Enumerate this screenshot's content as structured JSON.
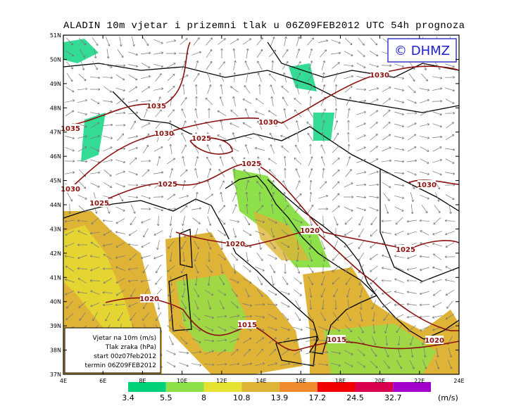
{
  "title": "ALADIN 10m vjetar i prizemni tlak u 06Z09FEB2012 UTC 54h prognoza",
  "logo": "© DHMZ",
  "lat_labels": [
    "51N",
    "50N",
    "49N",
    "48N",
    "47N",
    "46N",
    "45N",
    "44N",
    "43N",
    "42N",
    "41N",
    "40N",
    "39N",
    "38N",
    "37N"
  ],
  "lon_labels": [
    "4E",
    "6E",
    "8E",
    "10E",
    "12E",
    "14E",
    "16E",
    "18E",
    "20E",
    "22E",
    "24E"
  ],
  "isobar_labels": [
    1035,
    1035,
    1030,
    1025,
    1025,
    1025,
    1030,
    1025,
    1030,
    1030,
    1030,
    1020,
    1025,
    1020,
    1020,
    1015,
    1015,
    1020
  ],
  "info_box": [
    "Vjetar na 10m (m/s)",
    "Tlak zraka (hPa)",
    "start 00z07feb2012",
    "termin 06Z09FEB2012"
  ],
  "colorbar": {
    "labels": [
      3.4,
      5.5,
      8,
      10.8,
      13.9,
      17.2,
      24.5,
      32.7
    ],
    "colors": [
      "#00d27a",
      "#8ee04a",
      "#e6e232",
      "#dfb436",
      "#f08a2e",
      "#f00000",
      "#d8004c",
      "#a000c8"
    ],
    "unit": "(m/s)"
  }
}
